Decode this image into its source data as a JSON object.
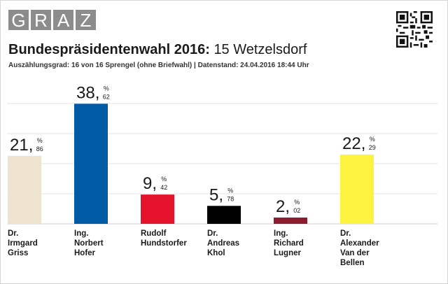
{
  "logo": {
    "letters": [
      "G",
      "R",
      "A",
      "Z"
    ]
  },
  "header": {
    "title_bold": "Bundespräsidentenwahl 2016:",
    "title_rest": "15 Wetzelsdorf",
    "subtitle": "Auszählungsgrad: 16 von 16 Sprengel (ohne Briefwahl) | Datenstand: 24.04.2016 18:44 Uhr"
  },
  "chart_data": {
    "type": "bar",
    "ylim": [
      0,
      45
    ],
    "grid": true,
    "unit": "%",
    "categories": [
      [
        "Dr.",
        "Irmgard",
        "Griss"
      ],
      [
        "Ing.",
        "Norbert",
        "Hofer"
      ],
      [
        "Rudolf",
        "Hundstorfer"
      ],
      [
        "Dr.",
        "Andreas",
        "Khol"
      ],
      [
        "Ing.",
        "Richard",
        "Lugner"
      ],
      [
        "Dr.",
        "Alexander",
        "Van der",
        "Bellen"
      ]
    ],
    "values": [
      21.86,
      38.62,
      9.42,
      5.78,
      2.02,
      22.29
    ],
    "value_int": [
      "21",
      "38",
      "9",
      "5",
      "2",
      "22"
    ],
    "value_dec": [
      "86",
      "62",
      "42",
      "78",
      "02",
      "29"
    ],
    "colors": [
      "#ede3cf",
      "#005aa4",
      "#e4132b",
      "#000000",
      "#8b1c2e",
      "#fbf33d"
    ]
  }
}
